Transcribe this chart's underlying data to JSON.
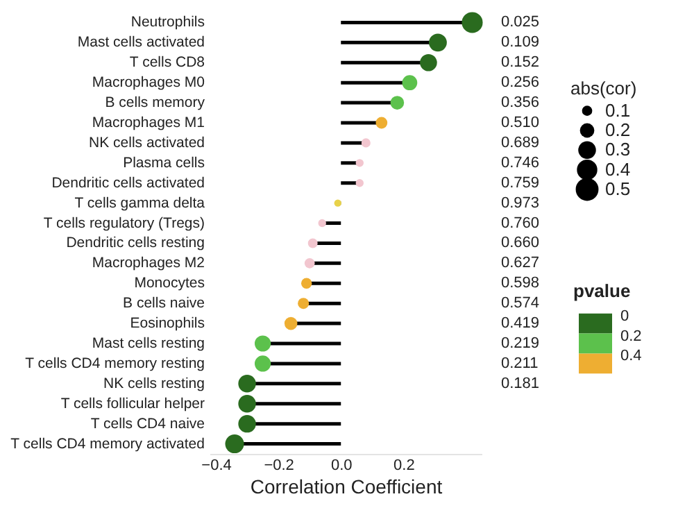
{
  "chart_data": {
    "type": "lollipop",
    "orientation": "horizontal",
    "xlabel": "Correlation Coefficient",
    "legend_title": "abs(cor)",
    "clabel": "pvalue",
    "categories": [
      "Neutrophils",
      "Mast cells activated",
      "T cells CD8",
      "Macrophages M0",
      "B cells memory",
      "Macrophages M1",
      "NK cells activated",
      "Plasma cells",
      "Dendritic cells activated",
      "T cells gamma delta",
      "T cells regulatory (Tregs)",
      "Dendritic cells resting",
      "Macrophages M2",
      "Monocytes",
      "B cells naive",
      "Eosinophils",
      "Mast cells resting",
      "T cells CD4 memory resting",
      "NK cells resting",
      "T cells follicular helper",
      "T cells CD4 naive",
      "T cells CD4 memory activated"
    ],
    "values": [
      0.42,
      0.31,
      0.28,
      0.22,
      0.18,
      0.13,
      0.08,
      0.06,
      0.06,
      -0.01,
      -0.06,
      -0.09,
      -0.1,
      -0.11,
      -0.12,
      -0.16,
      -0.25,
      -0.25,
      -0.3,
      -0.3,
      -0.3,
      -0.34
    ],
    "sizes": [
      0.42,
      0.31,
      0.28,
      0.22,
      0.18,
      0.13,
      0.08,
      0.06,
      0.06,
      0.05,
      0.06,
      0.09,
      0.1,
      0.11,
      0.12,
      0.16,
      0.25,
      0.25,
      0.3,
      0.3,
      0.3,
      0.34
    ],
    "size_legend": [
      0.1,
      0.2,
      0.3,
      0.4,
      0.5
    ],
    "annotations": [
      "0.025",
      "0.109",
      "0.152",
      "0.256",
      "0.356",
      "0.510",
      "0.689",
      "0.746",
      "0.759",
      "0.973",
      "0.760",
      "0.660",
      "0.627",
      "0.598",
      "0.574",
      "0.419",
      "0.219",
      "0.211",
      "0.181"
    ],
    "colors": [
      "#2a6b1f",
      "#2a6b1f",
      "#2a6b1f",
      "#5cc14c",
      "#5cc14c",
      "#eeae32",
      "#f2c6cf",
      "#f2c6cf",
      "#f2c6cf",
      "#e8d24a",
      "#f2c6cf",
      "#f2c6cf",
      "#f2c6cf",
      "#eeae32",
      "#eeae32",
      "#eeae32",
      "#5cc14c",
      "#5cc14c",
      "#2a6b1f",
      "#2a6b1f",
      "#2a6b1f",
      "#2a6b1f"
    ],
    "clim": [
      0,
      0.6
    ],
    "cticks": [
      0,
      0.2,
      0.4,
      {
        "value": 0.6,
        "label": null
      }
    ],
    "xlim": [
      -0.42,
      0.45
    ],
    "xticks": [
      {
        "value": -0.4,
        "label": "−0.4"
      },
      {
        "value": -0.2,
        "label": "−0.2"
      },
      {
        "value": 0,
        "label": "0.0"
      },
      {
        "value": 0.2,
        "label": "0.2"
      }
    ],
    "grid": false
  }
}
